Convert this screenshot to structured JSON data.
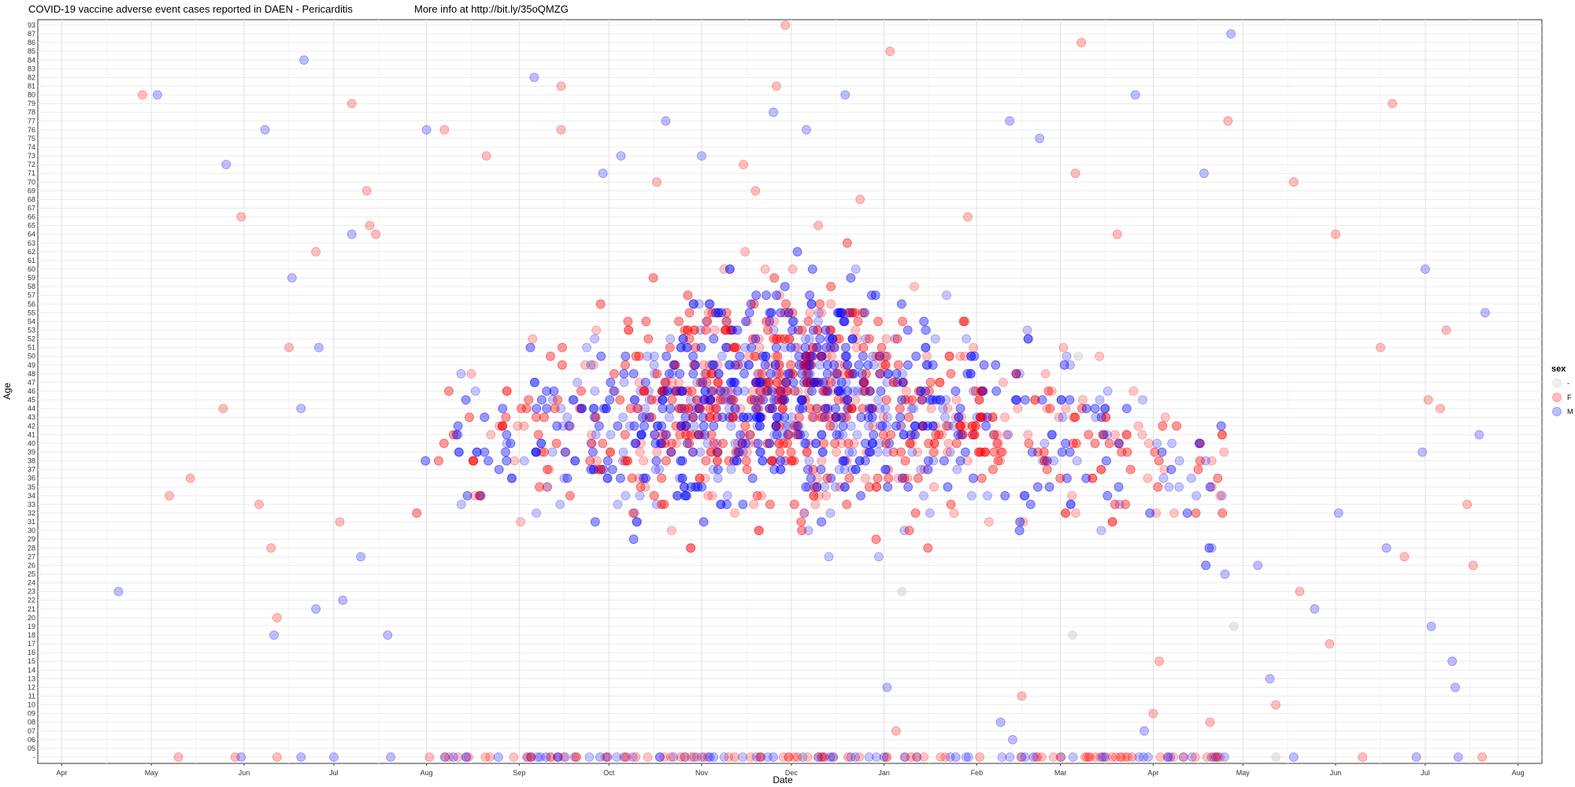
{
  "title": "COVID-19 vaccine adverse event cases reported in DAEN - Pericarditis",
  "info": "More info at http://bit.ly/35oQMZG",
  "chart_data": {
    "type": "scatter",
    "title": "COVID-19 vaccine adverse event cases reported in DAEN - Pericarditis",
    "xlabel": "Date",
    "ylabel": "Age",
    "x_tick_labels": [
      "Apr",
      "May",
      "Jun",
      "Jul",
      "Aug",
      "Sep",
      "Oct",
      "Nov",
      "Dec",
      "Jan",
      "Feb",
      "Mar",
      "Apr",
      "May",
      "Jun",
      "Jul",
      "Aug"
    ],
    "x_tick_dates": [
      "2021-04-01",
      "2021-05-01",
      "2021-06-01",
      "2021-07-01",
      "2021-08-01",
      "2021-09-01",
      "2021-10-01",
      "2021-11-01",
      "2021-12-01",
      "2022-01-01",
      "2022-02-01",
      "2022-03-01",
      "2022-04-01",
      "2022-05-01",
      "2022-06-01",
      "2022-07-01",
      "2022-08-01"
    ],
    "xlim": [
      "2021-03-24",
      "2022-08-09"
    ],
    "y_tick_labels": [
      "-",
      "05",
      "06",
      "07",
      "08",
      "09",
      "10",
      "11",
      "12",
      "13",
      "14",
      "15",
      "16",
      "17",
      "18",
      "19",
      "20",
      "21",
      "22",
      "23",
      "24",
      "25",
      "26",
      "27",
      "28",
      "29",
      "30",
      "31",
      "32",
      "33",
      "34",
      "35",
      "36",
      "37",
      "38",
      "39",
      "40",
      "41",
      "42",
      "43",
      "44",
      "45",
      "46",
      "47",
      "48",
      "49",
      "50",
      "51",
      "52",
      "53",
      "54",
      "55",
      "56",
      "57",
      "58",
      "59",
      "60",
      "61",
      "62",
      "63",
      "64",
      "65",
      "66",
      "67",
      "68",
      "69",
      "70",
      "71",
      "72",
      "73",
      "74",
      "75",
      "76",
      "77",
      "78",
      "79",
      "80",
      "81",
      "82",
      "83",
      "84",
      "85",
      "86",
      "87",
      "93"
    ],
    "grid": true,
    "legend": {
      "title": "sex",
      "placement": "right",
      "entries": [
        {
          "name": "-",
          "color": "#bbbbbb"
        },
        {
          "name": "F",
          "color": "#ff0000"
        },
        {
          "name": "M",
          "color": "#0000ff"
        }
      ]
    },
    "series": [
      {
        "name": "-",
        "color": "#bbbbbb",
        "points": [
          {
            "x": "2022-03-07",
            "y": "50"
          },
          {
            "x": "2022-03-05",
            "y": "18"
          },
          {
            "x": "2022-04-28",
            "y": "19"
          },
          {
            "x": "2022-05-12",
            "y": "-"
          },
          {
            "x": "2021-12-05",
            "y": "-"
          },
          {
            "x": "2022-01-07",
            "y": "23"
          }
        ]
      },
      {
        "name": "F",
        "color": "#ff0000",
        "points": [
          {
            "x": "2021-04-28",
            "y": "80"
          },
          {
            "x": "2021-07-07",
            "y": "79"
          },
          {
            "x": "2021-09-15",
            "y": "81"
          },
          {
            "x": "2021-11-26",
            "y": "81"
          },
          {
            "x": "2021-11-29",
            "y": "93"
          },
          {
            "x": "2022-01-03",
            "y": "85"
          },
          {
            "x": "2022-03-08",
            "y": "86"
          },
          {
            "x": "2022-06-20",
            "y": "79"
          },
          {
            "x": "2021-05-31",
            "y": "66"
          },
          {
            "x": "2021-06-25",
            "y": "62"
          },
          {
            "x": "2021-07-12",
            "y": "69"
          },
          {
            "x": "2021-07-13",
            "y": "65"
          },
          {
            "x": "2021-07-15",
            "y": "64"
          },
          {
            "x": "2021-08-07",
            "y": "76"
          },
          {
            "x": "2021-08-21",
            "y": "73"
          },
          {
            "x": "2021-09-15",
            "y": "76"
          },
          {
            "x": "2021-10-17",
            "y": "70"
          },
          {
            "x": "2021-11-15",
            "y": "72"
          },
          {
            "x": "2021-11-19",
            "y": "69"
          },
          {
            "x": "2021-12-10",
            "y": "65"
          },
          {
            "x": "2021-12-24",
            "y": "68"
          },
          {
            "x": "2022-01-29",
            "y": "66"
          },
          {
            "x": "2022-03-06",
            "y": "71"
          },
          {
            "x": "2022-03-20",
            "y": "64"
          },
          {
            "x": "2022-04-26",
            "y": "77"
          },
          {
            "x": "2022-05-18",
            "y": "70"
          },
          {
            "x": "2022-06-01",
            "y": "64"
          },
          {
            "x": "2022-06-16",
            "y": "51"
          },
          {
            "x": "2022-07-02",
            "y": "45"
          },
          {
            "x": "2022-07-08",
            "y": "53"
          },
          {
            "x": "2022-07-15",
            "y": "33"
          },
          {
            "x": "2021-05-10",
            "y": "-"
          },
          {
            "x": "2021-05-29",
            "y": "-"
          },
          {
            "x": "2021-06-12",
            "y": "-"
          },
          {
            "x": "2021-08-02",
            "y": "-"
          },
          {
            "x": "2021-08-15",
            "y": "-"
          },
          {
            "x": "2021-09-05",
            "y": "-"
          },
          {
            "x": "2021-09-20",
            "y": "-"
          },
          {
            "x": "2021-10-10",
            "y": "-"
          },
          {
            "x": "2021-10-25",
            "y": "-"
          },
          {
            "x": "2021-11-12",
            "y": "-"
          },
          {
            "x": "2021-12-03",
            "y": "-"
          },
          {
            "x": "2021-12-20",
            "y": "-"
          },
          {
            "x": "2022-01-10",
            "y": "-"
          },
          {
            "x": "2022-02-02",
            "y": "-"
          },
          {
            "x": "2022-03-01",
            "y": "-"
          },
          {
            "x": "2022-03-25",
            "y": "-"
          },
          {
            "x": "2022-04-22",
            "y": "-"
          },
          {
            "x": "2022-06-10",
            "y": "-"
          },
          {
            "x": "2022-07-20",
            "y": "-"
          },
          {
            "x": "2021-05-14",
            "y": "36"
          },
          {
            "x": "2021-05-07",
            "y": "34"
          },
          {
            "x": "2021-05-25",
            "y": "44"
          },
          {
            "x": "2021-06-06",
            "y": "33"
          },
          {
            "x": "2021-06-12",
            "y": "20"
          },
          {
            "x": "2021-06-10",
            "y": "28"
          },
          {
            "x": "2021-06-16",
            "y": "51"
          },
          {
            "x": "2021-07-03",
            "y": "31"
          },
          {
            "x": "2022-05-12",
            "y": "10"
          },
          {
            "x": "2022-05-20",
            "y": "23"
          },
          {
            "x": "2022-05-30",
            "y": "17"
          },
          {
            "x": "2022-06-24",
            "y": "27"
          },
          {
            "x": "2022-07-06",
            "y": "44"
          },
          {
            "x": "2022-07-17",
            "y": "26"
          },
          {
            "x": "2022-04-01",
            "y": "09"
          },
          {
            "x": "2022-04-03",
            "y": "15"
          },
          {
            "x": "2022-02-16",
            "y": "11"
          },
          {
            "x": "2022-04-20",
            "y": "08"
          },
          {
            "x": "2022-01-05",
            "y": "07"
          }
        ]
      },
      {
        "name": "M",
        "color": "#0000ff",
        "points": [
          {
            "x": "2021-05-03",
            "y": "80"
          },
          {
            "x": "2021-06-21",
            "y": "84"
          },
          {
            "x": "2021-09-06",
            "y": "82"
          },
          {
            "x": "2021-12-19",
            "y": "80"
          },
          {
            "x": "2022-03-26",
            "y": "80"
          },
          {
            "x": "2022-04-27",
            "y": "87"
          },
          {
            "x": "2021-05-26",
            "y": "72"
          },
          {
            "x": "2021-06-08",
            "y": "76"
          },
          {
            "x": "2021-07-07",
            "y": "64"
          },
          {
            "x": "2021-08-01",
            "y": "76"
          },
          {
            "x": "2021-09-29",
            "y": "71"
          },
          {
            "x": "2021-10-05",
            "y": "73"
          },
          {
            "x": "2021-10-20",
            "y": "77"
          },
          {
            "x": "2021-11-01",
            "y": "73"
          },
          {
            "x": "2021-11-25",
            "y": "78"
          },
          {
            "x": "2021-12-06",
            "y": "76"
          },
          {
            "x": "2022-02-12",
            "y": "77"
          },
          {
            "x": "2022-02-22",
            "y": "75"
          },
          {
            "x": "2022-04-18",
            "y": "71"
          },
          {
            "x": "2022-07-01",
            "y": "60"
          },
          {
            "x": "2022-07-21",
            "y": "55"
          },
          {
            "x": "2021-04-20",
            "y": "23"
          },
          {
            "x": "2021-06-11",
            "y": "18"
          },
          {
            "x": "2021-06-20",
            "y": "44"
          },
          {
            "x": "2021-06-25",
            "y": "21"
          },
          {
            "x": "2021-07-04",
            "y": "22"
          },
          {
            "x": "2021-07-10",
            "y": "27"
          },
          {
            "x": "2021-07-19",
            "y": "18"
          },
          {
            "x": "2021-06-17",
            "y": "59"
          },
          {
            "x": "2021-06-26",
            "y": "51"
          },
          {
            "x": "2021-05-31",
            "y": "-"
          },
          {
            "x": "2021-06-20",
            "y": "-"
          },
          {
            "x": "2021-07-01",
            "y": "-"
          },
          {
            "x": "2021-07-20",
            "y": "-"
          },
          {
            "x": "2021-08-10",
            "y": "-"
          },
          {
            "x": "2021-08-25",
            "y": "-"
          },
          {
            "x": "2021-09-10",
            "y": "-"
          },
          {
            "x": "2021-09-28",
            "y": "-"
          },
          {
            "x": "2021-10-18",
            "y": "-"
          },
          {
            "x": "2021-11-05",
            "y": "-"
          },
          {
            "x": "2021-11-25",
            "y": "-"
          },
          {
            "x": "2021-12-14",
            "y": "-"
          },
          {
            "x": "2022-01-01",
            "y": "-"
          },
          {
            "x": "2022-01-25",
            "y": "-"
          },
          {
            "x": "2022-02-20",
            "y": "-"
          },
          {
            "x": "2022-03-15",
            "y": "-"
          },
          {
            "x": "2022-04-06",
            "y": "-"
          },
          {
            "x": "2022-05-18",
            "y": "-"
          },
          {
            "x": "2022-06-28",
            "y": "-"
          },
          {
            "x": "2022-07-12",
            "y": "-"
          },
          {
            "x": "2022-05-06",
            "y": "26"
          },
          {
            "x": "2022-05-10",
            "y": "13"
          },
          {
            "x": "2022-05-25",
            "y": "21"
          },
          {
            "x": "2022-06-02",
            "y": "32"
          },
          {
            "x": "2022-06-18",
            "y": "28"
          },
          {
            "x": "2022-06-30",
            "y": "39"
          },
          {
            "x": "2022-07-03",
            "y": "19"
          },
          {
            "x": "2022-07-10",
            "y": "15"
          },
          {
            "x": "2022-07-11",
            "y": "12"
          },
          {
            "x": "2022-07-19",
            "y": "41"
          },
          {
            "x": "2022-04-25",
            "y": "25"
          },
          {
            "x": "2022-02-09",
            "y": "08"
          },
          {
            "x": "2022-02-13",
            "y": "06"
          },
          {
            "x": "2022-01-02",
            "y": "12"
          },
          {
            "x": "2022-03-29",
            "y": "07"
          }
        ]
      }
    ]
  }
}
